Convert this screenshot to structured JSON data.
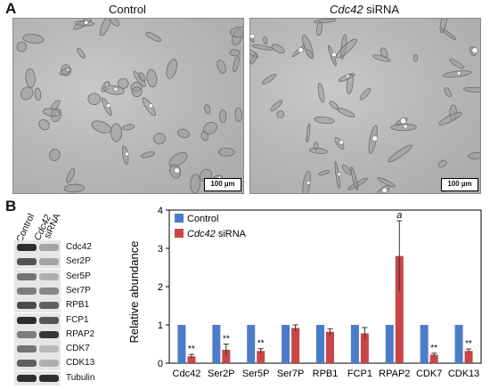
{
  "panel_a": {
    "letter": "A",
    "left_title": "Control",
    "right_title_gene": "Cdc42",
    "right_title_suffix": " siRNA",
    "scale_bar_left": "100 µm",
    "scale_bar_right": "100 µm"
  },
  "panel_b": {
    "letter": "B",
    "blot_columns": [
      "Control",
      "Cdc42",
      "siRNA"
    ],
    "blot_rows": [
      "Cdc42",
      "Ser2P",
      "Ser5P",
      "Ser7P",
      "RPB1",
      "FCP1",
      "RPAP2",
      "CDK7",
      "CDK13",
      "Tubulin"
    ],
    "blot_intensity": {
      "control": [
        0.95,
        0.75,
        0.6,
        0.55,
        0.8,
        0.95,
        0.55,
        0.6,
        0.7,
        0.95
      ],
      "sirna": [
        0.35,
        0.35,
        0.3,
        0.5,
        0.7,
        0.75,
        0.9,
        0.25,
        0.3,
        0.95
      ]
    }
  },
  "chart_data": {
    "type": "bar",
    "ylabel": "Relative abundance",
    "xlabel": "",
    "title": "",
    "ylim": [
      0,
      4
    ],
    "yticks": [
      "0",
      "1",
      "2",
      "3",
      "4"
    ],
    "categories": [
      "Cdc42",
      "Ser2P",
      "Ser5P",
      "Ser7P",
      "RPB1",
      "FCP1",
      "RPAP2",
      "CDK7",
      "CDK13"
    ],
    "series": [
      {
        "name": "Control",
        "color": "#4a7cc9",
        "values": [
          1,
          1,
          1,
          1,
          1,
          1,
          1,
          1,
          1
        ],
        "errors": [
          0,
          0,
          0,
          0,
          0,
          0,
          0,
          0,
          0
        ]
      },
      {
        "name": "Cdc42 siRNA",
        "name_italic": "Cdc42",
        "name_suffix": " siRNA",
        "color": "#c94646",
        "values": [
          0.18,
          0.35,
          0.32,
          0.92,
          0.82,
          0.78,
          2.8,
          0.22,
          0.32
        ],
        "errors": [
          0.05,
          0.15,
          0.06,
          0.08,
          0.08,
          0.15,
          0.92,
          0.04,
          0.05
        ]
      }
    ],
    "annotations": [
      "**",
      "**",
      "**",
      "",
      "",
      "",
      "a",
      "**",
      "**"
    ],
    "legend_position": "top-left"
  }
}
